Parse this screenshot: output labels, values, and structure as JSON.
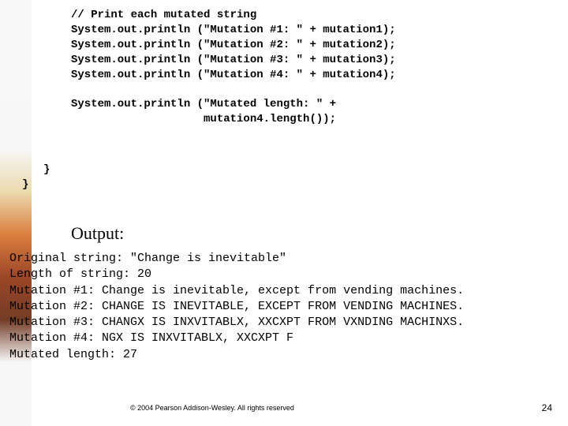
{
  "code": {
    "comment": "// Print each mutated string",
    "lines": [
      "System.out.println (\"Mutation #1: \" + mutation1);",
      "System.out.println (\"Mutation #2: \" + mutation2);",
      "System.out.println (\"Mutation #3: \" + mutation3);",
      "System.out.println (\"Mutation #4: \" + mutation4);"
    ],
    "length_line1": "System.out.println (\"Mutated length: \" +",
    "length_line2": "                    mutation4.length());",
    "brace1": "}",
    "brace2": "}"
  },
  "output_label": "Output:",
  "output": {
    "lines": [
      "Original string: \"Change is inevitable\"",
      "Length of string: 20",
      "Mutation #1: Change is inevitable, except from vending machines.",
      "Mutation #2: CHANGE IS INEVITABLE, EXCEPT FROM VENDING MACHINES.",
      "Mutation #3: CHANGX IS INXVITABLX, XXCXPT FROM VXNDING MACHINXS.",
      "Mutation #4: NGX IS INXVITABLX, XXCXPT F",
      "Mutated length: 27"
    ]
  },
  "copyright": "© 2004 Pearson Addison-Wesley. All rights reserved",
  "page_number": "24",
  "colors": {
    "background": "#ffffff",
    "text": "#000000"
  }
}
